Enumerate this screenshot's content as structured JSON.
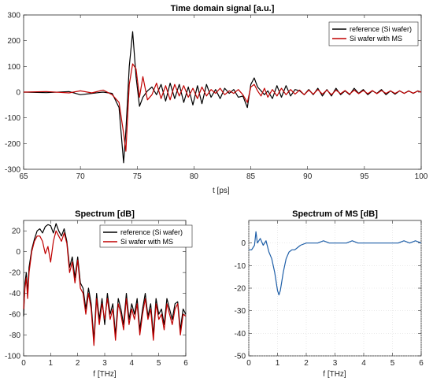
{
  "chart_data": [
    {
      "type": "line",
      "title": "Time domain signal [a.u.]",
      "xlabel": "t [ps]",
      "ylabel": "",
      "xlim": [
        65,
        100
      ],
      "ylim": [
        -300,
        300
      ],
      "xticks": [
        65,
        70,
        75,
        80,
        85,
        90,
        95,
        100
      ],
      "yticks": [
        -300,
        -200,
        -100,
        0,
        100,
        200,
        300
      ],
      "legend_position": "top-right",
      "series": [
        {
          "name": "reference (Si wafer)",
          "color": "#000000",
          "x": [
            65,
            67,
            69,
            70,
            71,
            72,
            72.8,
            73.4,
            73.8,
            74.0,
            74.3,
            74.6,
            74.9,
            75.2,
            75.5,
            75.9,
            76.3,
            76.7,
            77.1,
            77.5,
            77.9,
            78.3,
            78.7,
            79.1,
            79.5,
            79.9,
            80.3,
            80.7,
            81.1,
            81.5,
            81.9,
            82.3,
            82.7,
            83.1,
            83.5,
            83.9,
            84.3,
            84.7,
            85.0,
            85.3,
            85.6,
            85.9,
            86.2,
            86.5,
            86.9,
            87.3,
            87.7,
            88.1,
            88.5,
            88.9,
            89.3,
            89.7,
            90.1,
            90.5,
            90.9,
            91.3,
            91.7,
            92.1,
            92.5,
            92.9,
            93.3,
            93.7,
            94.1,
            94.5,
            94.9,
            95.3,
            95.7,
            96.1,
            96.5,
            96.9,
            97.3,
            97.7,
            98.1,
            98.5,
            98.9,
            99.3,
            99.7,
            100
          ],
          "y": [
            0,
            -2,
            2,
            -10,
            -5,
            0,
            -5,
            -60,
            -275,
            -150,
            100,
            235,
            60,
            -55,
            -20,
            5,
            20,
            -10,
            30,
            -35,
            35,
            -25,
            30,
            -40,
            20,
            -50,
            25,
            -45,
            30,
            -20,
            10,
            -25,
            15,
            -5,
            10,
            -20,
            -15,
            -60,
            30,
            55,
            20,
            5,
            -10,
            5,
            -25,
            25,
            -20,
            25,
            -15,
            10,
            5,
            -10,
            10,
            -10,
            15,
            -15,
            10,
            -15,
            15,
            -10,
            5,
            -10,
            15,
            -5,
            10,
            -10,
            5,
            -5,
            10,
            -10,
            5,
            -8,
            5,
            -5,
            5,
            -5,
            5,
            0
          ]
        },
        {
          "name": "Si wafer with MS",
          "color": "#c00000",
          "x": [
            65,
            67,
            69,
            70,
            71,
            72,
            72.8,
            73.4,
            73.8,
            74.0,
            74.3,
            74.6,
            74.9,
            75.2,
            75.5,
            75.9,
            76.3,
            76.7,
            77.1,
            77.5,
            77.9,
            78.3,
            78.7,
            79.1,
            79.5,
            79.9,
            80.3,
            80.7,
            81.1,
            81.5,
            81.9,
            82.3,
            82.7,
            83.1,
            83.5,
            83.9,
            84.3,
            84.7,
            85.0,
            85.3,
            85.6,
            85.9,
            86.2,
            86.5,
            86.9,
            87.3,
            87.7,
            88.1,
            88.5,
            88.9,
            89.3,
            89.7,
            90.1,
            90.5,
            90.9,
            91.3,
            91.7,
            92.1,
            92.5,
            92.9,
            93.3,
            93.7,
            94.1,
            94.5,
            94.9,
            95.3,
            95.7,
            96.1,
            96.5,
            96.9,
            97.3,
            97.7,
            98.1,
            98.5,
            98.9,
            99.3,
            99.7,
            100
          ],
          "y": [
            0,
            2,
            -3,
            5,
            -3,
            8,
            -10,
            -40,
            -160,
            -230,
            30,
            110,
            90,
            -20,
            60,
            -30,
            -10,
            35,
            -25,
            25,
            -30,
            30,
            -15,
            25,
            -20,
            15,
            -25,
            20,
            -15,
            10,
            -5,
            15,
            -10,
            5,
            -5,
            10,
            -10,
            -40,
            20,
            30,
            5,
            -15,
            15,
            -20,
            10,
            -15,
            15,
            -10,
            10,
            -8,
            8,
            -10,
            8,
            -8,
            10,
            -8,
            8,
            -10,
            8,
            -6,
            6,
            -8,
            8,
            -6,
            6,
            -6,
            6,
            -6,
            6,
            -5,
            5,
            -5,
            5,
            -5,
            4,
            -4,
            4,
            0
          ]
        }
      ]
    },
    {
      "type": "line",
      "title": "Spectrum [dB]",
      "xlabel": "f [THz]",
      "ylabel": "",
      "xlim": [
        0,
        6
      ],
      "ylim": [
        -100,
        30
      ],
      "xticks": [
        0,
        1,
        2,
        3,
        4,
        5,
        6
      ],
      "yticks": [
        -100,
        -80,
        -60,
        -40,
        -20,
        0,
        20
      ],
      "legend_position": "top-right",
      "series": [
        {
          "name": "reference (Si wafer)",
          "color": "#000000",
          "x": [
            0,
            0.05,
            0.1,
            0.15,
            0.2,
            0.3,
            0.4,
            0.5,
            0.6,
            0.7,
            0.8,
            0.9,
            1.0,
            1.1,
            1.2,
            1.3,
            1.4,
            1.5,
            1.6,
            1.7,
            1.8,
            1.9,
            2.0,
            2.1,
            2.2,
            2.3,
            2.4,
            2.5,
            2.6,
            2.7,
            2.8,
            2.9,
            3.0,
            3.1,
            3.2,
            3.3,
            3.4,
            3.5,
            3.6,
            3.7,
            3.8,
            3.9,
            4.0,
            4.1,
            4.2,
            4.3,
            4.4,
            4.5,
            4.6,
            4.7,
            4.8,
            4.9,
            5.0,
            5.1,
            5.2,
            5.3,
            5.4,
            5.5,
            5.6,
            5.7,
            5.8,
            5.9,
            6.0
          ],
          "y": [
            -62,
            -30,
            -20,
            -40,
            -15,
            2,
            12,
            20,
            22,
            18,
            24,
            26,
            25,
            18,
            27,
            20,
            15,
            22,
            10,
            -15,
            -5,
            -25,
            -5,
            -30,
            -35,
            -55,
            -35,
            -50,
            -85,
            -40,
            -65,
            -45,
            -70,
            -40,
            -60,
            -50,
            -80,
            -45,
            -55,
            -70,
            -40,
            -65,
            -50,
            -60,
            -45,
            -75,
            -55,
            -40,
            -62,
            -50,
            -80,
            -45,
            -60,
            -55,
            -70,
            -45,
            -55,
            -65,
            -50,
            -48,
            -75,
            -55,
            -60
          ]
        },
        {
          "name": "Si wafer with MS",
          "color": "#c00000",
          "x": [
            0,
            0.05,
            0.1,
            0.15,
            0.2,
            0.3,
            0.4,
            0.5,
            0.6,
            0.7,
            0.8,
            0.9,
            1.0,
            1.1,
            1.2,
            1.3,
            1.4,
            1.5,
            1.6,
            1.7,
            1.8,
            1.9,
            2.0,
            2.1,
            2.2,
            2.3,
            2.4,
            2.5,
            2.6,
            2.7,
            2.8,
            2.9,
            3.0,
            3.1,
            3.2,
            3.3,
            3.4,
            3.5,
            3.6,
            3.7,
            3.8,
            3.9,
            4.0,
            4.1,
            4.2,
            4.3,
            4.4,
            4.5,
            4.6,
            4.7,
            4.8,
            4.9,
            5.0,
            5.1,
            5.2,
            5.3,
            5.4,
            5.5,
            5.6,
            5.7,
            5.8,
            5.9,
            6.0
          ],
          "y": [
            -55,
            -35,
            -25,
            -45,
            -20,
            0,
            10,
            15,
            15,
            10,
            -2,
            5,
            -10,
            10,
            20,
            15,
            10,
            18,
            8,
            -20,
            -10,
            -30,
            -8,
            -35,
            -40,
            -60,
            -40,
            -55,
            -90,
            -45,
            -70,
            -50,
            -65,
            -45,
            -65,
            -55,
            -85,
            -50,
            -60,
            -75,
            -45,
            -70,
            -55,
            -65,
            -50,
            -80,
            -60,
            -45,
            -65,
            -55,
            -85,
            -50,
            -65,
            -60,
            -75,
            -50,
            -60,
            -70,
            -55,
            -50,
            -80,
            -60,
            -62
          ]
        }
      ]
    },
    {
      "type": "line",
      "title": "Spectrum of MS [dB]",
      "xlabel": "f [THz]",
      "ylabel": "",
      "xlim": [
        0,
        6
      ],
      "ylim": [
        -50,
        10
      ],
      "xticks": [
        0,
        1,
        2,
        3,
        4,
        5,
        6
      ],
      "yticks": [
        -50,
        -40,
        -30,
        -20,
        -10,
        0
      ],
      "series": [
        {
          "name": "",
          "color": "#1f5fa8",
          "x": [
            0,
            0.1,
            0.2,
            0.25,
            0.3,
            0.4,
            0.5,
            0.6,
            0.7,
            0.8,
            0.9,
            1.0,
            1.05,
            1.1,
            1.2,
            1.3,
            1.4,
            1.5,
            1.6,
            1.7,
            1.8,
            2.0,
            2.2,
            2.4,
            2.6,
            2.8,
            3.0,
            3.2,
            3.4,
            3.6,
            3.8,
            4.0,
            4.2,
            4.4,
            4.6,
            4.8,
            5.0,
            5.2,
            5.4,
            5.6,
            5.8,
            6.0
          ],
          "y": [
            -3,
            -3,
            -1,
            5,
            0,
            2,
            -1,
            1,
            -4,
            -7,
            -13,
            -21,
            -23,
            -21,
            -13,
            -7,
            -4,
            -3,
            -3,
            -2,
            -1,
            0,
            0,
            0,
            1,
            0,
            0,
            0,
            0,
            1,
            0,
            0,
            0,
            0,
            0,
            0,
            0,
            0,
            1,
            0,
            1,
            0
          ]
        }
      ]
    }
  ]
}
